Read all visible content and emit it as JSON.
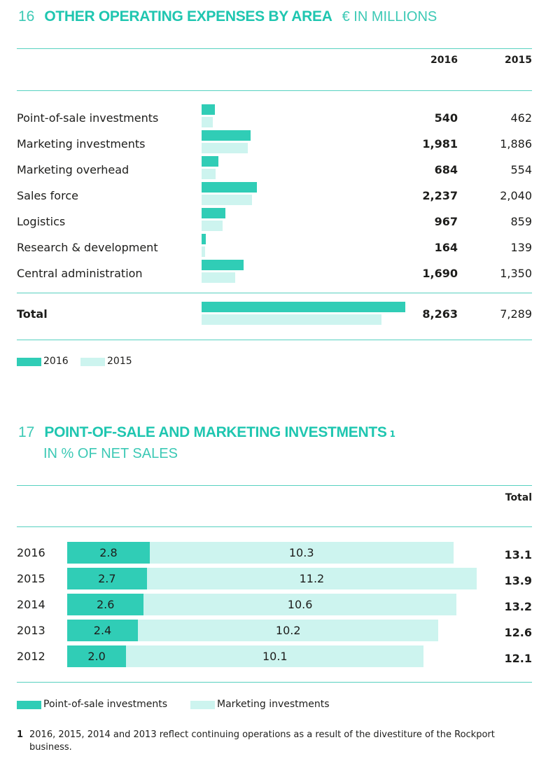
{
  "colors": {
    "accent": "#30cdb6",
    "accent_light": "#cdf4ef",
    "heading": "#1fc6b0"
  },
  "section16": {
    "number": "16",
    "title": "OTHER OPERATING EXPENSES BY AREA",
    "unit": "€ IN MILLIONS",
    "col_2016": "2016",
    "col_2015": "2015",
    "total_label": "Total",
    "total_2016": "8,263",
    "total_2015": "7,289",
    "legend_2016": "2016",
    "legend_2015": "2015"
  },
  "section17": {
    "number": "17",
    "title": "POINT-OF-SALE AND MARKETING INVESTMENTS",
    "footnote_mark": "1",
    "subtitle": "IN % OF NET SALES",
    "col_total": "Total",
    "legend_pos": "Point-of-sale investments",
    "legend_mkt": "Marketing investments",
    "footnote_num": "1",
    "footnote_text": "2016, 2015, 2014 and 2013 reflect continuing operations as a result of the divestiture of the Rockport business."
  },
  "chart_data": [
    {
      "type": "bar",
      "title": "OTHER OPERATING EXPENSES BY AREA",
      "unit": "€ in millions",
      "categories": [
        "Point-of-sale investments",
        "Marketing investments",
        "Marketing overhead",
        "Sales force",
        "Logistics",
        "Research & development",
        "Central administration"
      ],
      "series": [
        {
          "name": "2016",
          "values": [
            540,
            1981,
            684,
            2237,
            967,
            164,
            1690
          ],
          "labels": [
            "540",
            "1,981",
            "684",
            "2,237",
            "967",
            "164",
            "1,690"
          ]
        },
        {
          "name": "2015",
          "values": [
            462,
            1886,
            554,
            2040,
            859,
            139,
            1350
          ],
          "labels": [
            "462",
            "1,886",
            "554",
            "2,040",
            "859",
            "139",
            "1,350"
          ]
        }
      ],
      "total": {
        "2016": 8263,
        "2015": 7289
      }
    },
    {
      "type": "bar",
      "stacked": true,
      "title": "POINT-OF-SALE AND MARKETING INVESTMENTS",
      "subtitle": "IN % OF NET SALES",
      "categories": [
        "2016",
        "2015",
        "2014",
        "2013",
        "2012"
      ],
      "series": [
        {
          "name": "Point-of-sale investments",
          "values": [
            2.8,
            2.7,
            2.6,
            2.4,
            2.0
          ],
          "labels": [
            "2.8",
            "2.7",
            "2.6",
            "2.4",
            "2.0"
          ]
        },
        {
          "name": "Marketing investments",
          "values": [
            10.3,
            11.2,
            10.6,
            10.2,
            10.1
          ],
          "labels": [
            "10.3",
            "11.2",
            "10.6",
            "10.2",
            "10.1"
          ]
        }
      ],
      "totals": [
        "13.1",
        "13.9",
        "13.2",
        "12.6",
        "12.1"
      ]
    }
  ]
}
